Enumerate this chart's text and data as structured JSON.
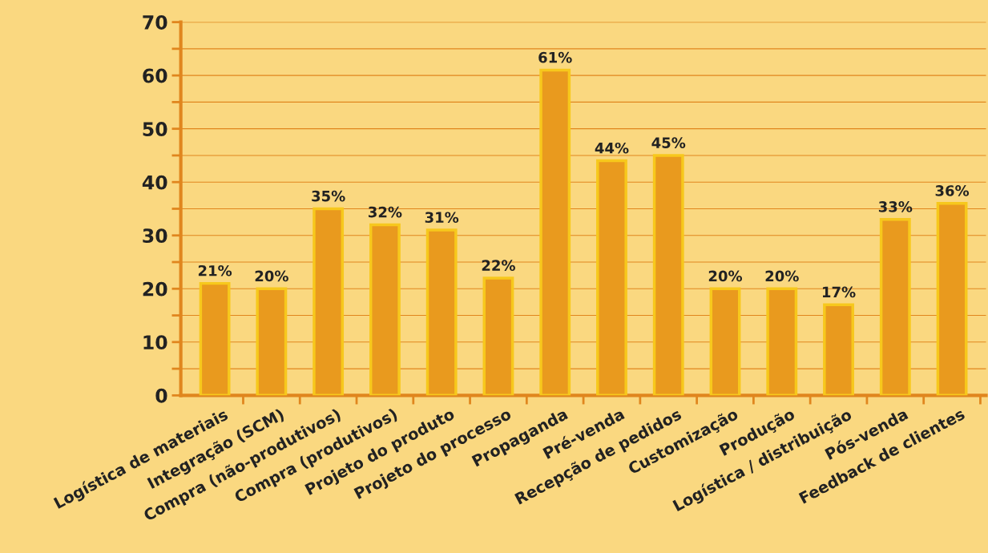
{
  "chart_data": {
    "type": "bar",
    "categories": [
      "Logística de materiais",
      "Integração (SCM)",
      "Compra (não-produtivos)",
      "Compra (produtivos)",
      "Projeto do produto",
      "Projeto do processo",
      "Propaganda",
      "Pré-venda",
      "Recepção de pedidos",
      "Customização",
      "Produção",
      "Logística / distribuição",
      "Pós-venda",
      "Feedback de clientes"
    ],
    "values": [
      21,
      20,
      35,
      32,
      31,
      22,
      61,
      44,
      45,
      20,
      20,
      17,
      33,
      36
    ],
    "value_labels": [
      "21%",
      "20%",
      "35%",
      "32%",
      "31%",
      "22%",
      "61%",
      "44%",
      "45%",
      "20%",
      "20%",
      "17%",
      "33%",
      "36%"
    ],
    "color": "#e99a1e",
    "ylim": [
      0,
      70
    ],
    "yticks": [
      0,
      {
        "value": 5,
        "label": null
      },
      10,
      {
        "value": 15,
        "label": null
      },
      20,
      {
        "value": 25,
        "label": null
      },
      30,
      {
        "value": 35,
        "label": null
      },
      40,
      {
        "value": 45,
        "label": null
      },
      50,
      {
        "value": 55,
        "label": null
      },
      60,
      {
        "value": 65,
        "label": null
      },
      70
    ],
    "grid": "y"
  }
}
